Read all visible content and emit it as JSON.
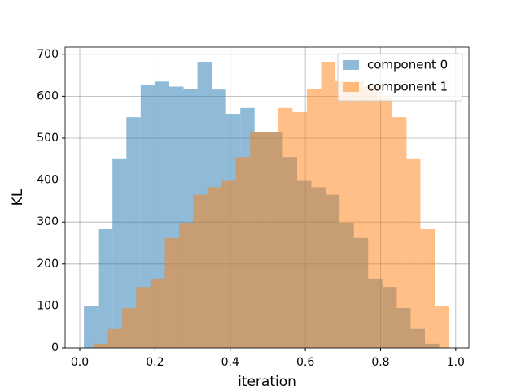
{
  "chart_data": {
    "type": "histogram",
    "xlabel": "iteration",
    "ylabel": "KL",
    "xlim": [
      -0.039,
      1.035
    ],
    "ylim": [
      0,
      717
    ],
    "xticks": [
      {
        "value": 0,
        "label": "0.0"
      },
      0.2,
      0.4,
      0.6,
      0.8,
      {
        "value": 1,
        "label": "1.0"
      }
    ],
    "yticks": [
      0,
      100,
      200,
      300,
      400,
      500,
      600,
      700
    ],
    "grid": true,
    "legend": "upper right",
    "series": [
      {
        "name": "component 0",
        "color": "#1f77b4",
        "opacity": 0.5,
        "bins": [
          0.011,
          0.049,
          0.087,
          0.124,
          0.162,
          0.2,
          0.238,
          0.276,
          0.313,
          0.351,
          0.389,
          0.427,
          0.465,
          0.502,
          0.54,
          0.578,
          0.616,
          0.654,
          0.691,
          0.729,
          0.767,
          0.805,
          0.843,
          0.88,
          0.918,
          0.956
        ],
        "values": [
          100,
          283,
          450,
          550,
          628,
          635,
          623,
          618,
          682,
          616,
          558,
          572,
          515,
          515,
          455,
          398,
          383,
          365,
          298,
          262,
          165,
          145,
          95,
          45,
          10
        ]
      },
      {
        "name": "component 1",
        "color": "#ff7f0e",
        "opacity": 0.5,
        "bins": [
          0.037,
          0.075,
          0.113,
          0.15,
          0.188,
          0.226,
          0.264,
          0.302,
          0.339,
          0.377,
          0.415,
          0.453,
          0.491,
          0.528,
          0.566,
          0.604,
          0.642,
          0.68,
          0.717,
          0.755,
          0.793,
          0.831,
          0.869,
          0.906,
          0.944,
          0.982
        ],
        "values": [
          10,
          45,
          95,
          145,
          165,
          262,
          298,
          365,
          383,
          398,
          455,
          515,
          515,
          572,
          562,
          617,
          682,
          636,
          636,
          625,
          597,
          550,
          450,
          283,
          100
        ]
      }
    ]
  }
}
